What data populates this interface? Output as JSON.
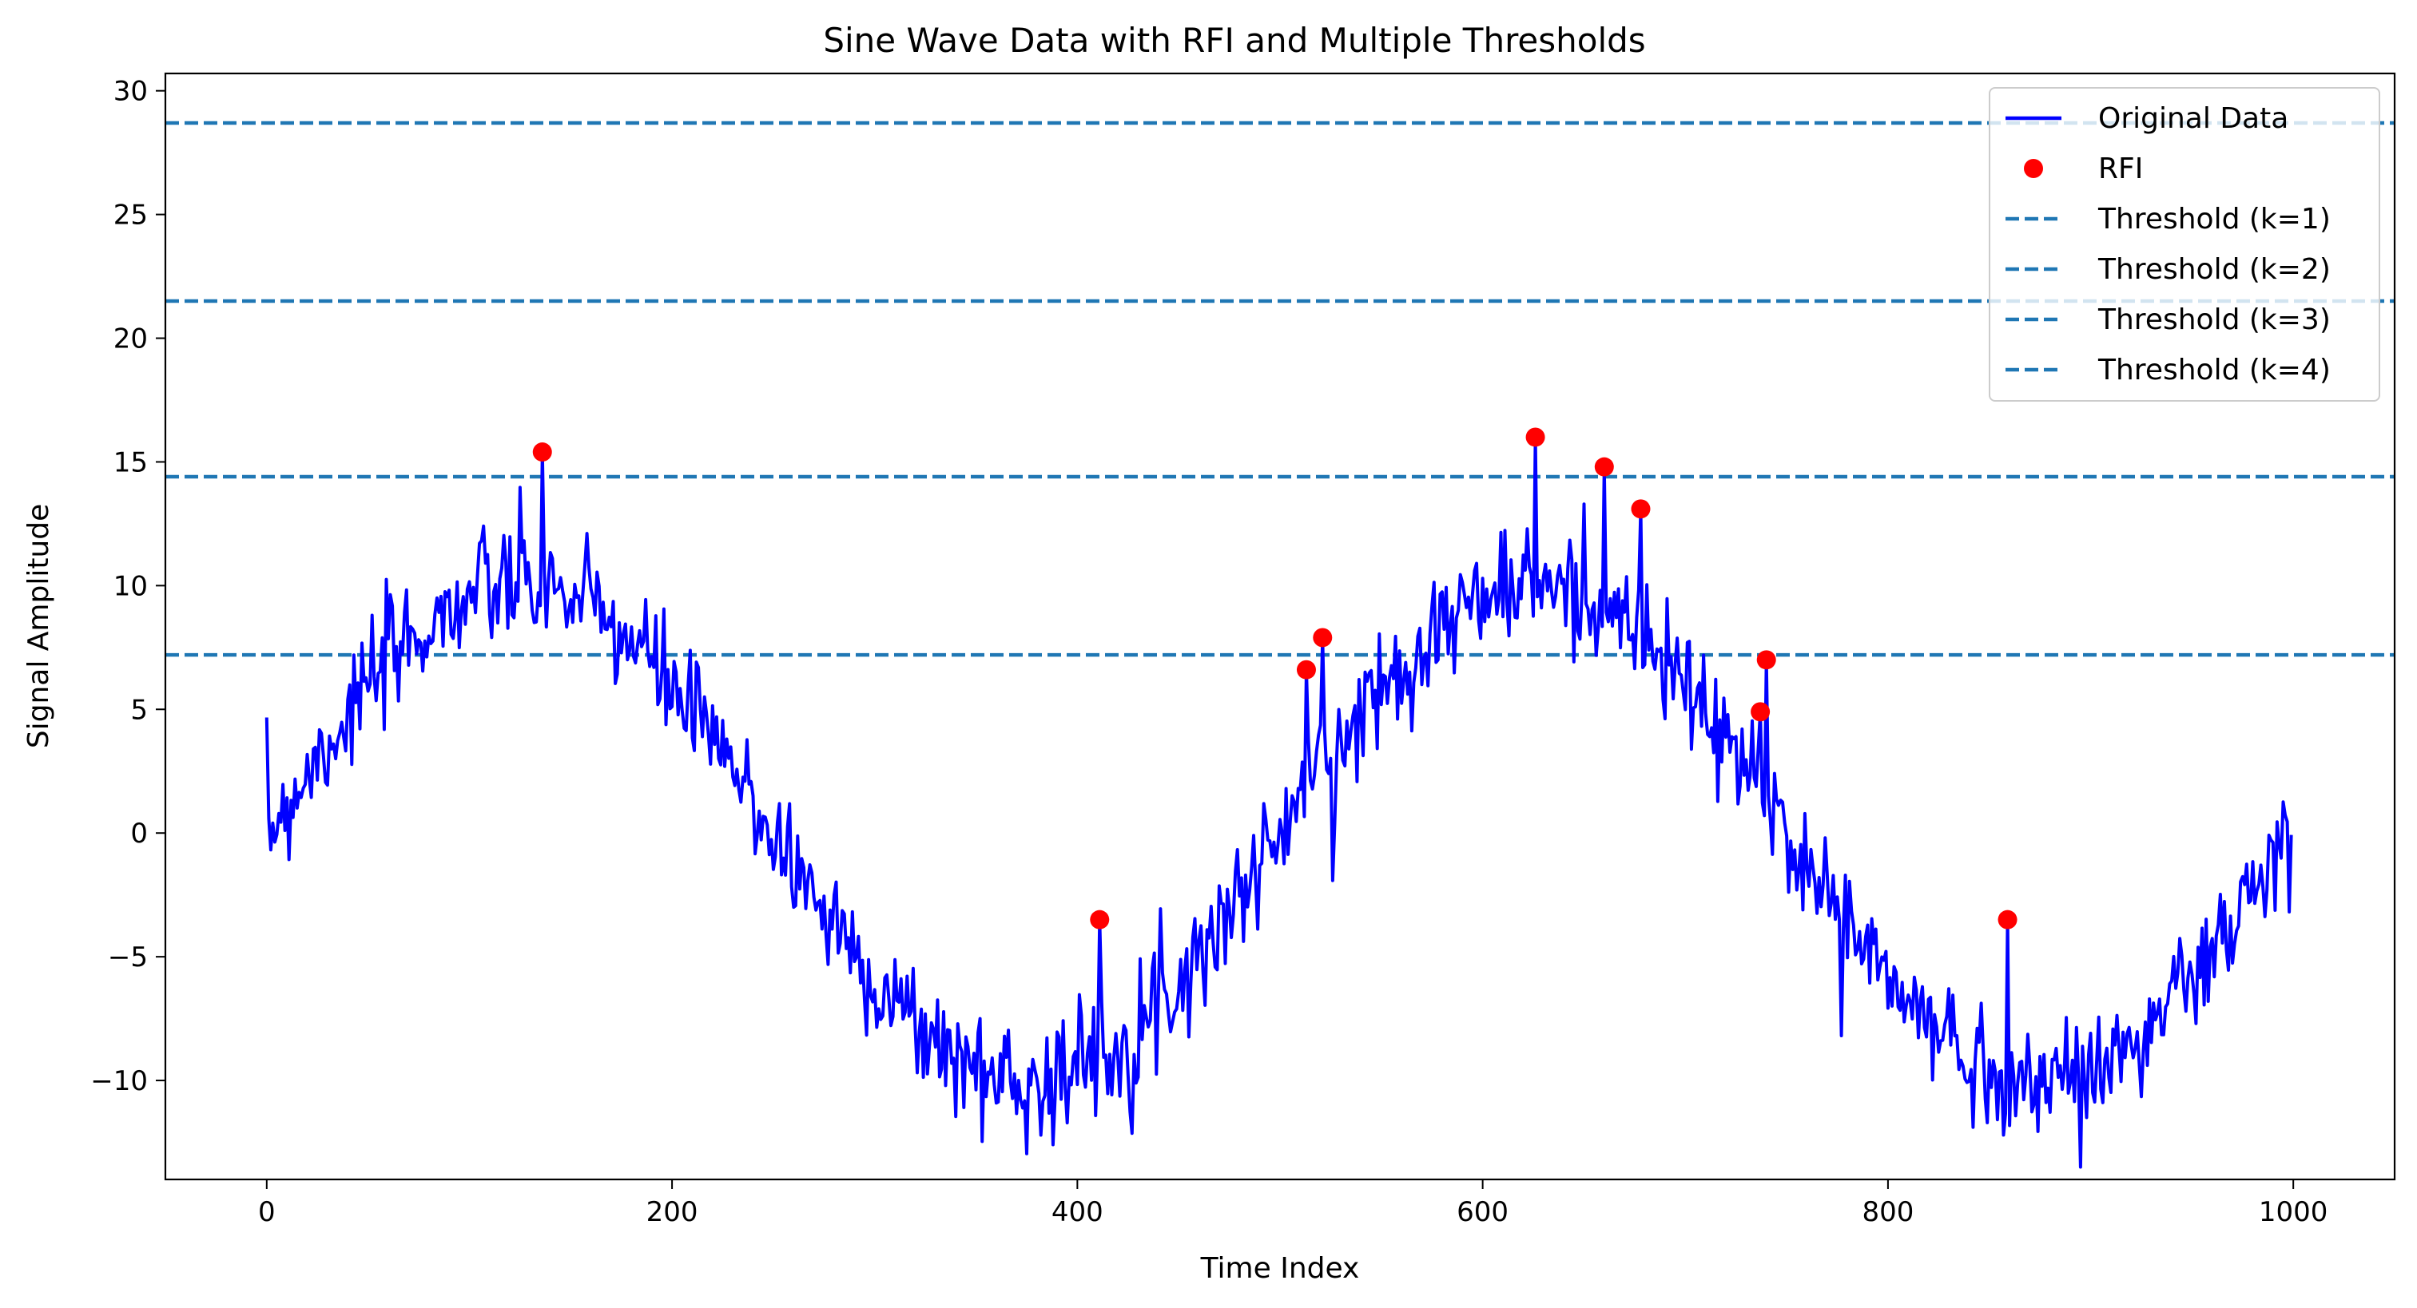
{
  "chart_data": {
    "type": "line",
    "title": "Sine Wave Data with RFI and Multiple Thresholds",
    "xlabel": "Time Index",
    "ylabel": "Signal Amplitude",
    "xlim": [
      -50,
      1050
    ],
    "ylim": [
      -14,
      30.7
    ],
    "xticks": [
      0,
      200,
      400,
      600,
      800,
      1000
    ],
    "xtick_labels": [
      "0",
      "200",
      "400",
      "600",
      "800",
      "1000"
    ],
    "yticks": [
      -10,
      -5,
      0,
      5,
      10,
      15,
      20,
      25,
      30
    ],
    "ytick_labels": [
      "−10",
      "−5",
      "0",
      "5",
      "10",
      "15",
      "20",
      "25",
      "30"
    ],
    "grid": false,
    "legend_position": "top-right",
    "series": [
      {
        "name": "Original Data",
        "kind": "line",
        "color": "#0000ff",
        "generator": {
          "x_start": 0,
          "x_end": 999,
          "amplitude": 10,
          "period": 500,
          "noise_std": 1.2,
          "seed": 7
        }
      },
      {
        "name": "RFI",
        "kind": "scatter",
        "color": "#ff0000",
        "points": [
          {
            "x": 136,
            "y": 15.4
          },
          {
            "x": 411,
            "y": -3.5
          },
          {
            "x": 513,
            "y": 6.6
          },
          {
            "x": 521,
            "y": 7.9
          },
          {
            "x": 626,
            "y": 16.0
          },
          {
            "x": 660,
            "y": 14.8
          },
          {
            "x": 678,
            "y": 13.1
          },
          {
            "x": 737,
            "y": 4.9
          },
          {
            "x": 740,
            "y": 7.0
          },
          {
            "x": 859,
            "y": -3.5
          }
        ]
      }
    ],
    "thresholds": [
      {
        "name": "Threshold (k=1)",
        "y": 7.2,
        "color": "#1f77b4"
      },
      {
        "name": "Threshold (k=2)",
        "y": 14.4,
        "color": "#1f77b4"
      },
      {
        "name": "Threshold (k=3)",
        "y": 21.5,
        "color": "#1f77b4"
      },
      {
        "name": "Threshold (k=4)",
        "y": 28.7,
        "color": "#1f77b4"
      }
    ]
  }
}
